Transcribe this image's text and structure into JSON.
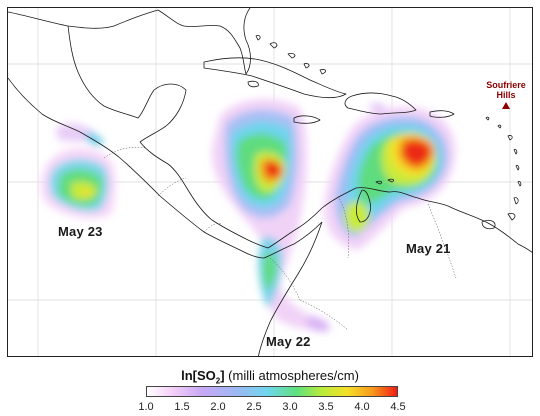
{
  "labels": {
    "may23": "May 23",
    "may22": "May 22",
    "may21": "May 21"
  },
  "volcano": {
    "line1": "Soufriere",
    "line2": "Hills",
    "color": "#8b0000",
    "icon": "triangle-marker-icon"
  },
  "legend": {
    "title_main": "ln[SO",
    "title_sub": "2",
    "title_close": "]",
    "title_units": "(milli atmospheres/cm)",
    "ticks": [
      "1.0",
      "1.5",
      "2.0",
      "2.5",
      "3.0",
      "3.5",
      "4.0",
      "4.5"
    ],
    "range": [
      1.0,
      4.5
    ]
  }
}
